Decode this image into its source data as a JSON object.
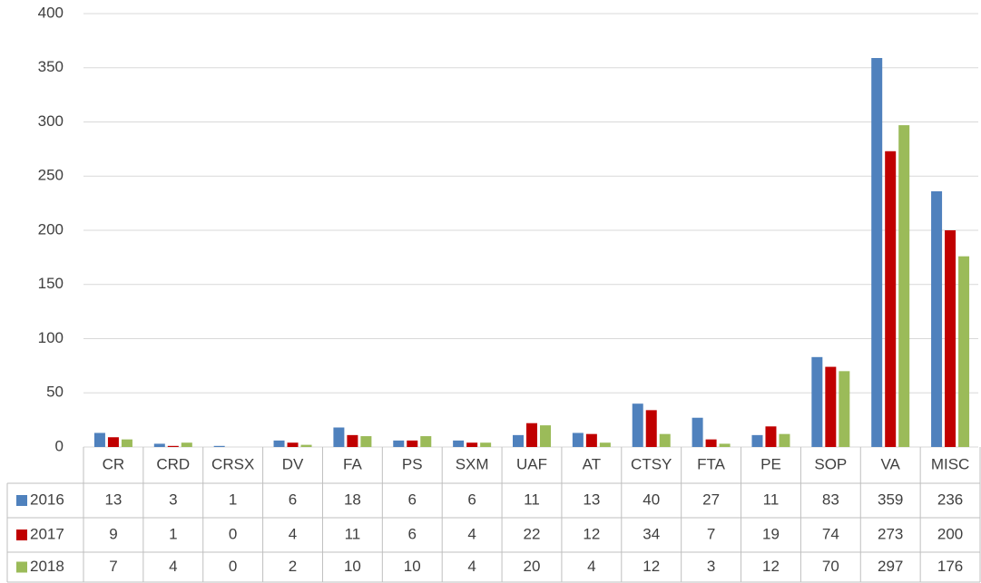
{
  "chart_data": {
    "type": "bar",
    "categories": [
      "CR",
      "CRD",
      "CRSX",
      "DV",
      "FA",
      "PS",
      "SXM",
      "UAF",
      "AT",
      "CTSY",
      "FTA",
      "PE",
      "SOP",
      "VA",
      "MISC"
    ],
    "series": [
      {
        "name": "2016",
        "color": "#4f81bd",
        "values": [
          13,
          3,
          1,
          6,
          18,
          6,
          6,
          11,
          13,
          40,
          27,
          11,
          83,
          359,
          236
        ]
      },
      {
        "name": "2017",
        "color": "#c00000",
        "values": [
          9,
          1,
          0,
          4,
          11,
          6,
          4,
          22,
          12,
          34,
          7,
          19,
          74,
          273,
          200
        ]
      },
      {
        "name": "2018",
        "color": "#9bbb59",
        "values": [
          7,
          4,
          0,
          2,
          10,
          10,
          4,
          20,
          4,
          12,
          3,
          12,
          70,
          297,
          176
        ]
      }
    ],
    "ylim": [
      0,
      400
    ],
    "yticks": [
      0,
      50,
      100,
      150,
      200,
      250,
      300,
      350,
      400
    ],
    "grid": true
  }
}
